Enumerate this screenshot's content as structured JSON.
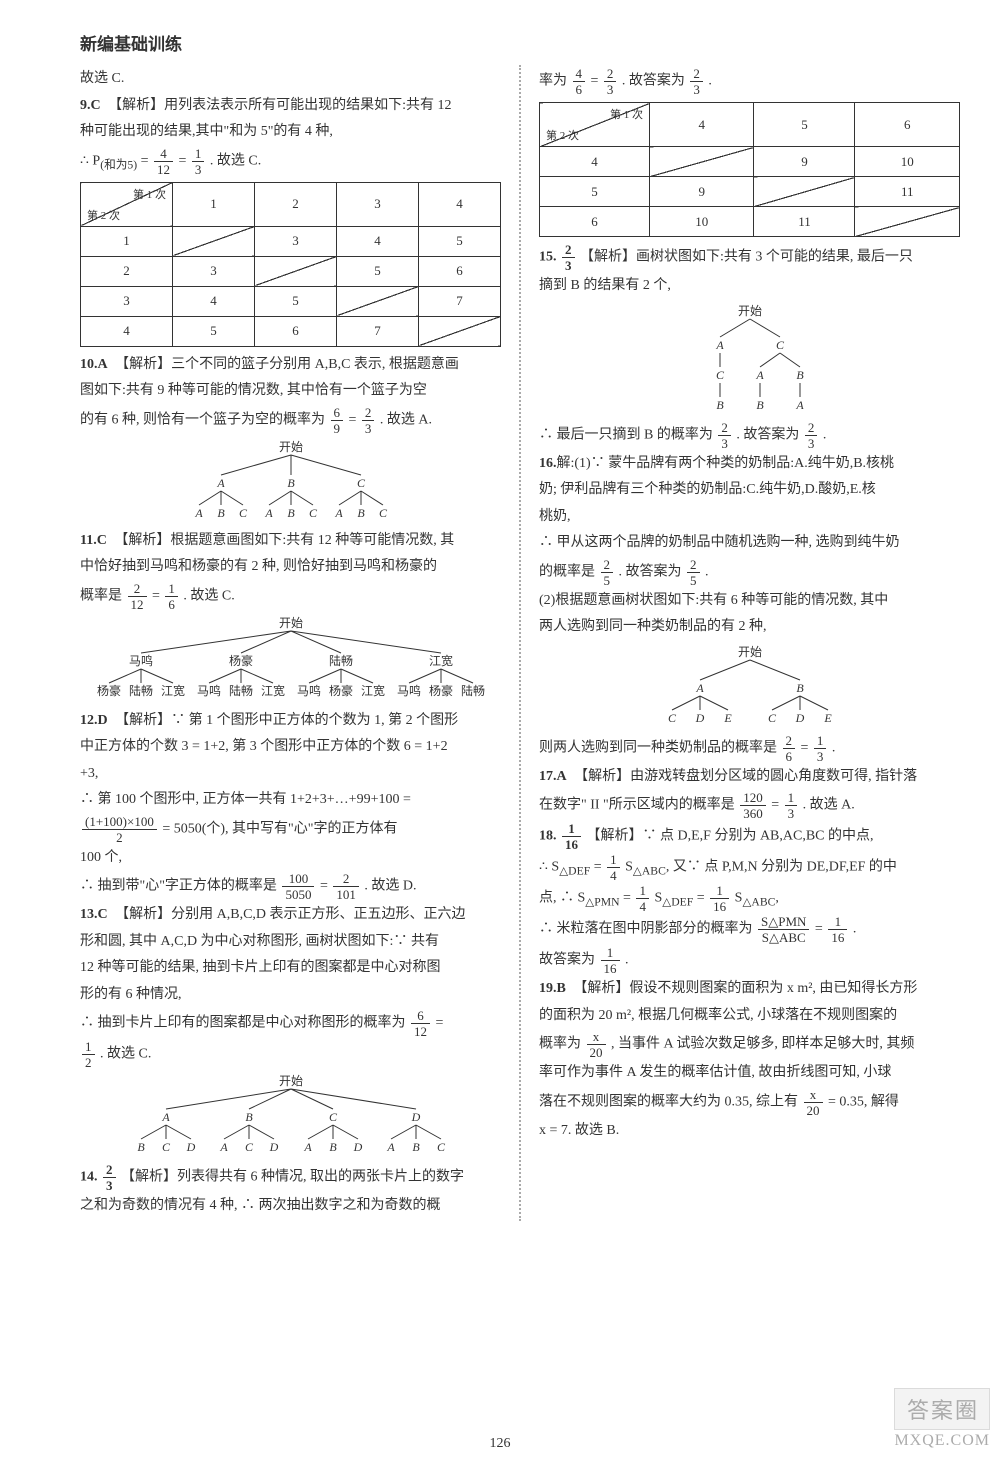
{
  "heading": "新编基础训练",
  "pagenum": "126",
  "watermark_top": "答案圈",
  "watermark_bot": "MXQE.COM",
  "left": {
    "pre9": "故选 C.",
    "q9": {
      "num": "9.",
      "ans": "C",
      "txt1": "【解析】用列表法表示所有可能出现的结果如下:共有 12",
      "txt2": "种可能出现的结果,其中\"和为 5\"的有 4 种,",
      "eq": [
        "∴ P",
        "(和为5)",
        " = ",
        "4",
        "12",
        " = ",
        "1",
        "3",
        ". 故选 C."
      ]
    },
    "table9": {
      "hdr": {
        "tr": "第 1 次",
        "bl": "第 2 次"
      },
      "cols": [
        "1",
        "2",
        "3",
        "4"
      ],
      "rows": [
        [
          "1",
          [
            "",
            "3",
            "4",
            "5"
          ]
        ],
        [
          "2",
          [
            "3",
            "",
            "5",
            "6"
          ]
        ],
        [
          "3",
          [
            "4",
            "5",
            "",
            "7"
          ]
        ],
        [
          "4",
          [
            "5",
            "6",
            "7",
            ""
          ]
        ]
      ]
    },
    "q10": {
      "num": "10.",
      "ans": "A",
      "txt1": "【解析】三个不同的篮子分别用 A,B,C 表示, 根据题意画",
      "txt2": "图如下:共有 9 种等可能的情况数, 其中恰有一个篮子为空",
      "txt3_a": "的有 6 种, 则恰有一个篮子为空的概率为",
      "txt3_b": ". 故选 A.",
      "f1": [
        "6",
        "9"
      ],
      "f2": [
        "2",
        "3"
      ]
    },
    "tree10": {
      "root": "开始",
      "l1": [
        "A",
        "B",
        "C"
      ],
      "l2": [
        "A",
        "B",
        "C",
        "A",
        "B",
        "C",
        "A",
        "B",
        "C"
      ]
    },
    "q11": {
      "num": "11.",
      "ans": "C",
      "txt1": "【解析】根据题意画图如下:共有 12 种等可能情况数, 其",
      "txt2": "中恰好抽到马鸣和杨豪的有 2 种, 则恰好抽到马鸣和杨豪的",
      "txt3_a": "概率是",
      "txt3_b": ". 故选 C.",
      "f1": [
        "2",
        "12"
      ],
      "f2": [
        "1",
        "6"
      ]
    },
    "tree11": {
      "root": "开始",
      "l1": [
        "马鸣",
        "杨豪",
        "陆畅",
        "江宽"
      ],
      "l2": [
        "杨豪",
        "陆畅",
        "江宽",
        "马鸣",
        "陆畅",
        "江宽",
        "马鸣",
        "杨豪",
        "江宽",
        "马鸣",
        "杨豪",
        "陆畅"
      ]
    },
    "q12": {
      "num": "12.",
      "ans": "D",
      "txt1": "【解析】∵ 第 1 个图形中正方体的个数为 1, 第 2 个图形",
      "txt2": "中正方体的个数 3 = 1+2, 第 3 个图形中正方体的个数 6 = 1+2",
      "txt3": "+3,",
      "txt4": "∴ 第 100 个图形中, 正方体一共有 1+2+3+…+99+100 =",
      "eq_a": "(1+100)×100",
      "eq_b": "2",
      "eq_c": " = 5050(个), 其中写有\"心\"字的正方体有",
      "txt5": "100 个,",
      "txt6_a": "∴ 抽到带\"心\"字正方体的概率是",
      "txt6_b": ". 故选 D.",
      "f1": [
        "100",
        "5050"
      ],
      "f2": [
        "2",
        "101"
      ]
    },
    "q13": {
      "num": "13.",
      "ans": "C",
      "txt1": "【解析】分别用 A,B,C,D 表示正方形、正五边形、正六边",
      "txt2": "形和圆, 其中 A,C,D 为中心对称图形, 画树状图如下:∵ 共有",
      "txt3": "12 种等可能的结果, 抽到卡片上印有的图案都是中心对称图",
      "txt4": "形的有 6 种情况,",
      "txt5_a": "∴ 抽到卡片上印有的图案都是中心对称图形的概率为",
      "f1": [
        "6",
        "12"
      ],
      "txt6_b": ". 故选 C.",
      "f2": [
        "1",
        "2"
      ]
    },
    "tree13": {
      "root": "开始",
      "l1": [
        "A",
        "B",
        "C",
        "D"
      ],
      "l2": [
        "B",
        "C",
        "D",
        "A",
        "C",
        "D",
        "A",
        "B",
        "D",
        "A",
        "B",
        "C"
      ]
    },
    "q14": {
      "num": "14.",
      "ans_f": [
        "2",
        "3"
      ],
      "txt1": "【解析】列表得共有 6 种情况, 取出的两张卡片上的数字",
      "txt2": "之和为奇数的情况有 4 种, ∴ 两次抽出数字之和为奇数的概"
    }
  },
  "right": {
    "cont14": {
      "txt_a": "率为",
      "f1": [
        "4",
        "6"
      ],
      "f2": [
        "2",
        "3"
      ],
      "txt_b": ". 故答案为",
      "f3": [
        "2",
        "3"
      ],
      "txt_c": "."
    },
    "table14": {
      "hdr": {
        "tr": "第 1 次",
        "bl": "第 2 次"
      },
      "cols": [
        "4",
        "5",
        "6"
      ],
      "rows": [
        [
          "4",
          [
            "",
            "9",
            "10"
          ]
        ],
        [
          "5",
          [
            "9",
            "",
            "11"
          ]
        ],
        [
          "6",
          [
            "10",
            "11",
            ""
          ]
        ]
      ]
    },
    "q15": {
      "num": "15.",
      "ans_f": [
        "2",
        "3"
      ],
      "txt1": "【解析】画树状图如下:共有 3 个可能的结果, 最后一只",
      "txt2": "摘到 B 的结果有 2 个,"
    },
    "tree15": {
      "root": "开始",
      "l1": [
        "A",
        "C"
      ],
      "l2a": [
        "C",
        "A",
        "B"
      ],
      "l2b": [
        "B",
        "B",
        "A"
      ]
    },
    "q15c": {
      "txt_a": "∴ 最后一只摘到 B 的概率为",
      "f1": [
        "2",
        "3"
      ],
      "txt_b": ". 故答案为",
      "f2": [
        "2",
        "3"
      ],
      "txt_c": "."
    },
    "q16": {
      "num": "16.",
      "txt1": "解:(1)∵ 蒙牛品牌有两个种类的奶制品:A.纯牛奶,B.核桃",
      "txt2": "奶; 伊利品牌有三个种类的奶制品:C.纯牛奶,D.酸奶,E.核",
      "txt3": "桃奶,",
      "txt4": "∴ 甲从这两个品牌的奶制品中随机选购一种, 选购到纯牛奶",
      "txt5_a": "的概率是",
      "f1": [
        "2",
        "5"
      ],
      "txt5_b": ". 故答案为",
      "f2": [
        "2",
        "5"
      ],
      "txt5_c": ".",
      "txt6": "(2)根据题意画树状图如下:共有 6 种等可能的情况数, 其中",
      "txt7": "两人选购到同一种类奶制品的有 2 种,"
    },
    "tree16": {
      "root": "开始",
      "l1": [
        "A",
        "B"
      ],
      "l2": [
        "C",
        "D",
        "E",
        "C",
        "D",
        "E"
      ]
    },
    "q16c": {
      "txt_a": "则两人选购到同一种类奶制品的概率是",
      "f1": [
        "2",
        "6"
      ],
      "f2": [
        "1",
        "3"
      ],
      "txt_b": "."
    },
    "q17": {
      "num": "17.",
      "ans": "A",
      "txt1": "【解析】由游戏转盘划分区域的圆心角度数可得, 指针落",
      "txt2_a": "在数字\" II \"所示区域内的概率是",
      "f1": [
        "120",
        "360"
      ],
      "f2": [
        "1",
        "3"
      ],
      "txt2_b": ". 故选 A."
    },
    "q18": {
      "num": "18.",
      "ans_f": [
        "1",
        "16"
      ],
      "txt1": "【解析】∵ 点 D,E,F 分别为 AB,AC,BC 的中点,",
      "txt2_a": "∴ S",
      "sub1": "△DEF",
      "txt2_b": " = ",
      "f1": [
        "1",
        "4"
      ],
      "txt2_c": "S",
      "sub2": "△ABC",
      "txt2_d": ", 又∵ 点 P,M,N 分别为 DE,DF,EF 的中",
      "txt3_a": "点, ∴ S",
      "sub3": "△PMN",
      "txt3_b": " = ",
      "f2": [
        "1",
        "4"
      ],
      "txt3_c": "S",
      "sub4": "△DEF",
      "txt3_d": " = ",
      "f3": [
        "1",
        "16"
      ],
      "txt3_e": "S",
      "sub5": "△ABC",
      "txt3_f": ",",
      "txt4_a": "∴ 米粒落在图中阴影部分的概率为",
      "f4_top": "S△PMN",
      "f4_bot": "S△ABC",
      "txt4_b": " = ",
      "f5": [
        "1",
        "16"
      ],
      "txt4_c": ".",
      "txt5_a": "故答案为",
      "f6": [
        "1",
        "16"
      ],
      "txt5_b": "."
    },
    "q19": {
      "num": "19.",
      "ans": "B",
      "txt1": "【解析】假设不规则图案的面积为 x m², 由已知得长方形",
      "txt2": "的面积为 20 m², 根据几何概率公式, 小球落在不规则图案的",
      "txt3_a": "概率为",
      "f1": [
        "x",
        "20"
      ],
      "txt3_b": ", 当事件 A 试验次数足够多, 即样本足够大时, 其频",
      "txt4": "率可作为事件 A 发生的概率估计值, 故由折线图可知, 小球",
      "txt5_a": "落在不规则图案的概率大约为 0.35, 综上有",
      "f2": [
        "x",
        "20"
      ],
      "txt5_b": " = 0.35, 解得",
      "txt6": "x = 7. 故选 B."
    }
  }
}
